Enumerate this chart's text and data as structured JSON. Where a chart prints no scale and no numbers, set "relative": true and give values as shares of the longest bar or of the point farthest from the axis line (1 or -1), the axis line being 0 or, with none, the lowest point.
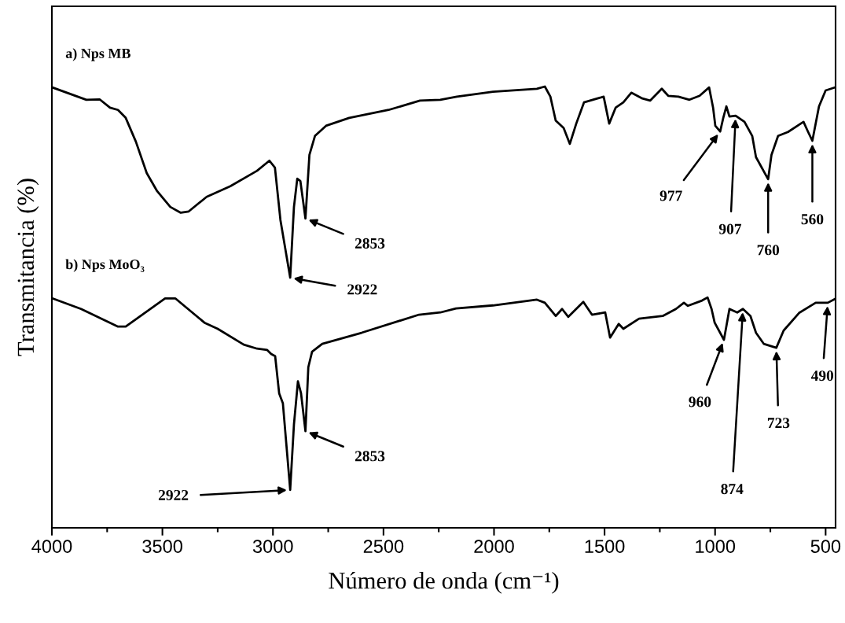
{
  "chart_data": {
    "type": "line",
    "relative": true,
    "xlabel": "Número de onda (cm⁻¹)",
    "ylabel": "Transmitancia (%)",
    "xlim": [
      4000,
      455
    ],
    "xticks": [
      4000,
      {
        "value": 3750,
        "label": null
      },
      3500,
      {
        "value": 3250,
        "label": null
      },
      3000,
      {
        "value": 2750,
        "label": null
      },
      2500,
      {
        "value": 2250,
        "label": null
      },
      2000,
      {
        "value": 1750,
        "label": null
      },
      1500,
      {
        "value": 1250,
        "label": null
      },
      1000,
      {
        "value": 750,
        "label": null
      },
      500
    ],
    "tick_labels": "x",
    "grid": false,
    "marker": "none",
    "line_style": "solid",
    "series": [
      {
        "name": "a) Nps MB",
        "color": "#000000",
        "x": [
          3998,
          3844,
          3784,
          3737,
          3701,
          3666,
          3620,
          3571,
          3524,
          3464,
          3417,
          3381,
          3300,
          3193,
          3072,
          3016,
          2991,
          2966,
          2922,
          2905,
          2890,
          2876,
          2853,
          2835,
          2810,
          2760,
          2655,
          2477,
          2335,
          2243,
          2168,
          2005,
          1806,
          1770,
          1745,
          1721,
          1685,
          1657,
          1628,
          1593,
          1532,
          1504,
          1479,
          1450,
          1415,
          1379,
          1329,
          1294,
          1241,
          1212,
          1166,
          1116,
          1070,
          1027,
          1009,
          999,
          977,
          963,
          949,
          935,
          907,
          867,
          832,
          815,
          760,
          745,
          715,
          670,
          600,
          580,
          560,
          530,
          500,
          458
        ],
        "values": [
          0.998,
          0.97,
          0.971,
          0.952,
          0.947,
          0.929,
          0.875,
          0.804,
          0.763,
          0.727,
          0.714,
          0.717,
          0.75,
          0.774,
          0.809,
          0.832,
          0.816,
          0.697,
          0.567,
          0.727,
          0.791,
          0.786,
          0.701,
          0.845,
          0.888,
          0.911,
          0.929,
          0.947,
          0.968,
          0.97,
          0.977,
          0.988,
          0.995,
          1.0,
          0.977,
          0.923,
          0.906,
          0.87,
          0.916,
          0.964,
          0.973,
          0.977,
          0.916,
          0.952,
          0.964,
          0.986,
          0.973,
          0.968,
          0.995,
          0.979,
          0.977,
          0.97,
          0.979,
          0.998,
          0.952,
          0.911,
          0.898,
          0.929,
          0.955,
          0.932,
          0.934,
          0.92,
          0.888,
          0.84,
          0.79,
          0.845,
          0.888,
          0.897,
          0.92,
          0.898,
          0.877,
          0.955,
          0.991,
          0.998
        ]
      },
      {
        "name": "b) Nps MoO₃",
        "color": "#000000",
        "x": [
          3998,
          3868,
          3701,
          3666,
          3605,
          3488,
          3442,
          3310,
          3250,
          3132,
          3072,
          3026,
          3008,
          2990,
          2972,
          2955,
          2922,
          2905,
          2887,
          2873,
          2853,
          2840,
          2823,
          2777,
          2599,
          2339,
          2243,
          2172,
          2005,
          1806,
          1770,
          1721,
          1692,
          1664,
          1596,
          1557,
          1497,
          1475,
          1436,
          1415,
          1344,
          1237,
          1177,
          1141,
          1123,
          1059,
          1034,
          1016,
          1002,
          960,
          935,
          900,
          874,
          840,
          815,
          780,
          723,
          690,
          620,
          545,
          490,
          460
        ],
        "values": [
          0.52,
          0.496,
          0.456,
          0.456,
          0.478,
          0.52,
          0.52,
          0.465,
          0.451,
          0.415,
          0.406,
          0.403,
          0.394,
          0.389,
          0.305,
          0.282,
          0.086,
          0.234,
          0.332,
          0.305,
          0.219,
          0.364,
          0.399,
          0.417,
          0.442,
          0.483,
          0.488,
          0.497,
          0.504,
          0.517,
          0.51,
          0.48,
          0.496,
          0.478,
          0.512,
          0.483,
          0.488,
          0.431,
          0.462,
          0.451,
          0.474,
          0.48,
          0.496,
          0.51,
          0.503,
          0.515,
          0.522,
          0.496,
          0.465,
          0.426,
          0.496,
          0.488,
          0.496,
          0.48,
          0.442,
          0.417,
          0.408,
          0.447,
          0.487,
          0.51,
          0.51,
          0.518
        ]
      }
    ],
    "annotations": [
      {
        "text": "2853",
        "x": 2853,
        "y": 0.701
      },
      {
        "text": "2922",
        "x": 2922,
        "y": 0.567
      },
      {
        "text": "977",
        "x": 977,
        "y": 0.898
      },
      {
        "text": "907",
        "x": 907,
        "y": 0.934
      },
      {
        "text": "760",
        "x": 760,
        "y": 0.79
      },
      {
        "text": "560",
        "x": 560,
        "y": 0.877
      },
      {
        "text": "2853",
        "x": 2853,
        "y": 0.219
      },
      {
        "text": "2922",
        "x": 2922,
        "y": 0.086
      },
      {
        "text": "960",
        "x": 960,
        "y": 0.426
      },
      {
        "text": "874",
        "x": 874,
        "y": 0.496
      },
      {
        "text": "723",
        "x": 723,
        "y": 0.408
      },
      {
        "text": "490",
        "x": 490,
        "y": 0.51
      }
    ]
  }
}
